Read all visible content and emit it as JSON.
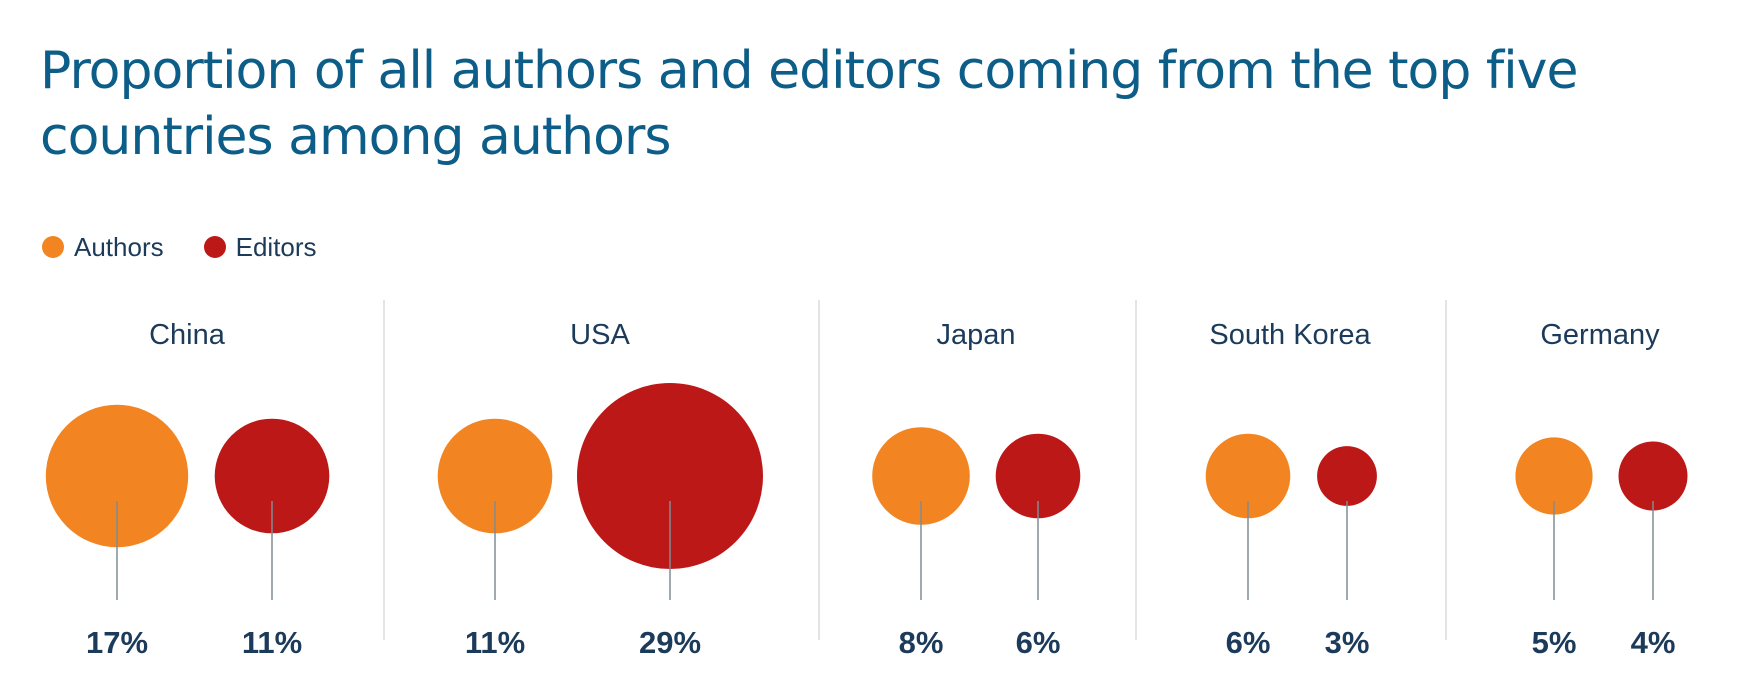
{
  "title": "Proportion of all authors and editors coming from the top five countries among authors",
  "colors": {
    "authors": "#f28522",
    "editors": "#bd1818",
    "text": "#1c3b5a",
    "title": "#0c5d88",
    "divider": "#dcdcdc",
    "stem": "#7f8c96"
  },
  "legend": [
    {
      "label": "Authors",
      "color": "#f28522"
    },
    {
      "label": "Editors",
      "color": "#bd1818"
    }
  ],
  "chart_data": {
    "type": "bubble",
    "title": "Proportion of all authors and editors coming from the top five countries among authors",
    "categories": [
      "China",
      "USA",
      "Japan",
      "South Korea",
      "Germany"
    ],
    "series": [
      {
        "name": "Authors",
        "color": "#f28522",
        "values": [
          17,
          11,
          8,
          6,
          5
        ],
        "labels": [
          "17%",
          "11%",
          "8%",
          "6%",
          "5%"
        ]
      },
      {
        "name": "Editors",
        "color": "#bd1818",
        "values": [
          11,
          29,
          6,
          3,
          4
        ],
        "labels": [
          "11%",
          "29%",
          "6%",
          "3%",
          "4%"
        ]
      }
    ],
    "unit": "%",
    "legend_position": "top-left"
  }
}
